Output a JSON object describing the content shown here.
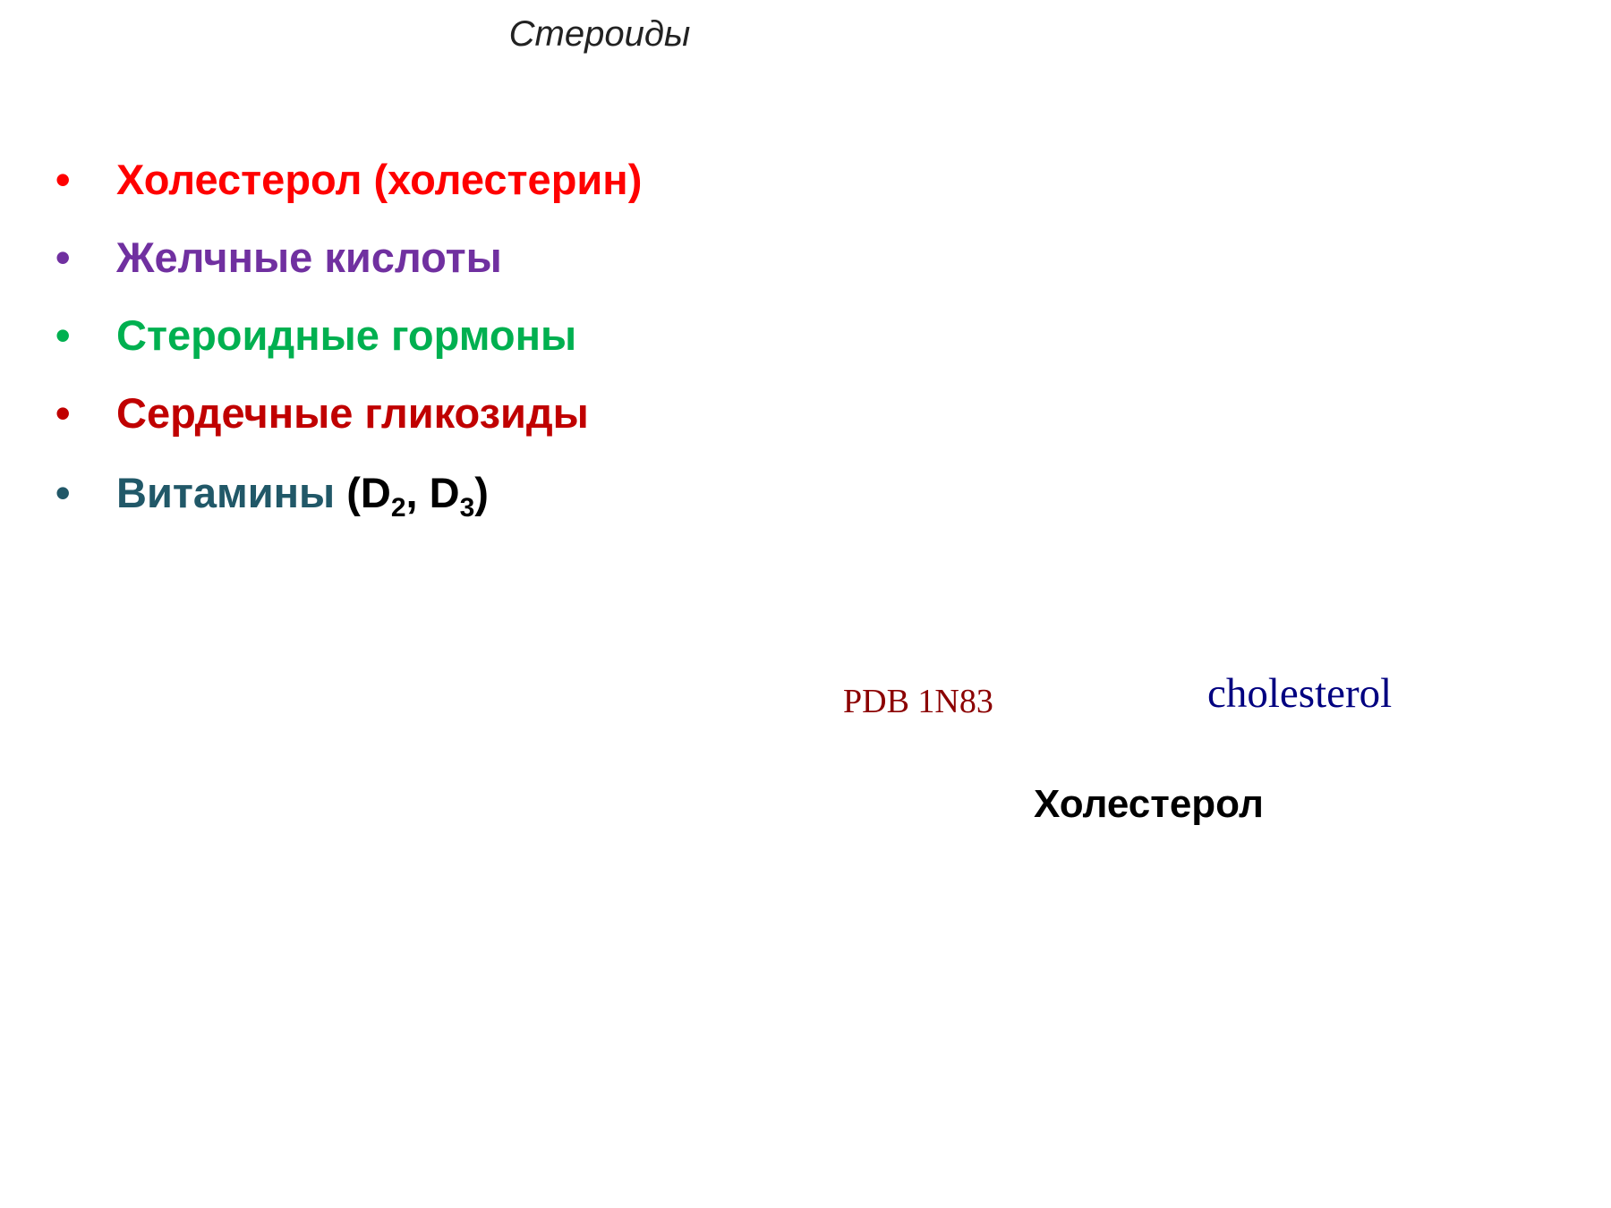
{
  "header": {
    "title": "Стероиды"
  },
  "list": {
    "items": [
      "Холестерол (холестерин)",
      "Желчные кислоты",
      "Стероидные гормоны",
      "Сердечные гликозиды",
      {
        "name": "Витамины",
        "open": "(D",
        "sub1": "2",
        "mid": ", D",
        "sub2": "3",
        "close": ")"
      }
    ]
  },
  "figure": {
    "pdb_label": "PDB 1N83",
    "molecule_label": "cholesterol",
    "caption": "Холестерол"
  }
}
